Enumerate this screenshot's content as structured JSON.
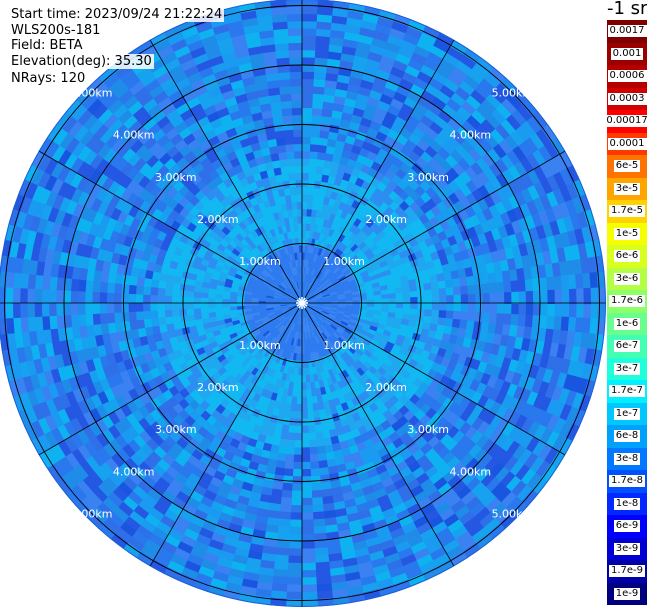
{
  "info": {
    "start_time": "Start time: 2023/09/24 21:22:24",
    "instrument": "WLS200s-181",
    "field": "Field: BETA",
    "elevation": "Elevation(deg): 35.30",
    "nrays": "NRays: 120"
  },
  "colorbar": {
    "unit_label": "-1 sr",
    "entries": [
      {
        "label": "0.0017",
        "color": "#7f0000"
      },
      {
        "label": "0.001",
        "color": "#9a0000"
      },
      {
        "label": "0.0006",
        "color": "#b50000"
      },
      {
        "label": "0.0003",
        "color": "#d00000"
      },
      {
        "label": "0.00017",
        "color": "#ff0000"
      },
      {
        "label": "0.0001",
        "color": "#ff3a00"
      },
      {
        "label": "6e-5",
        "color": "#ff7400"
      },
      {
        "label": "3e-5",
        "color": "#ffa500"
      },
      {
        "label": "1.7e-5",
        "color": "#ffd200"
      },
      {
        "label": "1e-5",
        "color": "#f5ff00"
      },
      {
        "label": "6e-6",
        "color": "#d8ff1e"
      },
      {
        "label": "3e-6",
        "color": "#b4ff43"
      },
      {
        "label": "1.7e-6",
        "color": "#8dff69"
      },
      {
        "label": "1e-6",
        "color": "#68ff8f"
      },
      {
        "label": "6e-7",
        "color": "#43ffb4"
      },
      {
        "label": "3e-7",
        "color": "#1effda"
      },
      {
        "label": "1.7e-7",
        "color": "#00f0ff"
      },
      {
        "label": "1e-7",
        "color": "#00c8ff"
      },
      {
        "label": "6e-8",
        "color": "#00a0ff"
      },
      {
        "label": "3e-8",
        "color": "#0078ff"
      },
      {
        "label": "1.7e-8",
        "color": "#0050ff"
      },
      {
        "label": "1e-8",
        "color": "#0028ff"
      },
      {
        "label": "6e-9",
        "color": "#0000ff"
      },
      {
        "label": "3e-9",
        "color": "#0000d4"
      },
      {
        "label": "1.7e-9",
        "color": "#0000aa"
      },
      {
        "label": "1e-9",
        "color": "#00007f"
      }
    ]
  },
  "range_rings": [
    {
      "label": "1.00km",
      "km": 1
    },
    {
      "label": "2.00km",
      "km": 2
    },
    {
      "label": "3.00km",
      "km": 3
    },
    {
      "label": "4.00km",
      "km": 4
    },
    {
      "label": "5.00km",
      "km": 5
    }
  ],
  "scan": {
    "max_range_km": 5.1,
    "colors": {
      "inner": "#2e7bf0",
      "mid_cyan": "#12b8f2",
      "outer": "#1f8ce8",
      "deep_blue": "#1a55e0"
    }
  }
}
